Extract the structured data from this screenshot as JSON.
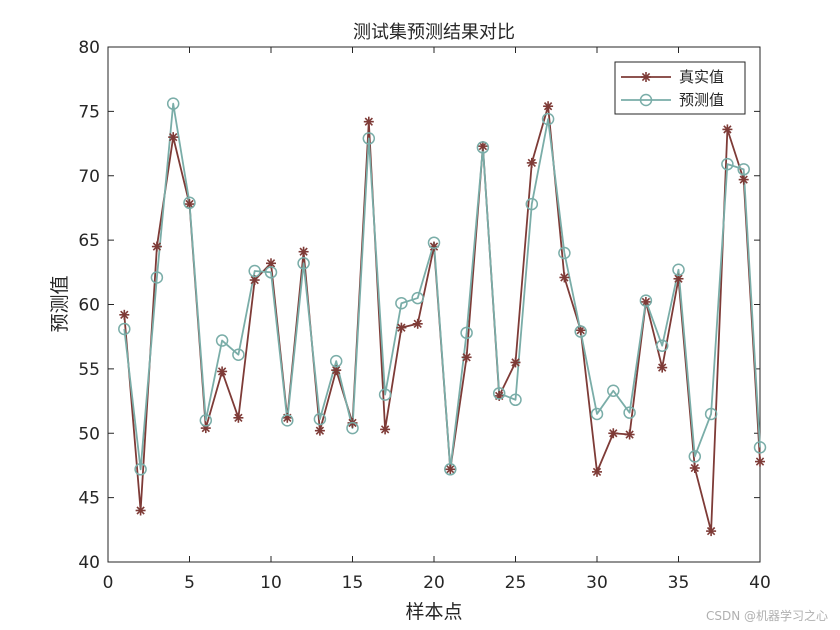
{
  "watermark": "CSDN @机器学习之心",
  "chart_data": {
    "type": "line",
    "title": "测试集预测结果对比",
    "xlabel": "样本点",
    "ylabel": "预测值",
    "xlim": [
      0,
      40
    ],
    "ylim": [
      40,
      80
    ],
    "xticks": [
      0,
      5,
      10,
      15,
      20,
      25,
      30,
      35,
      40
    ],
    "yticks": [
      40,
      45,
      50,
      55,
      60,
      65,
      70,
      75,
      80
    ],
    "grid": false,
    "legend_position": "top-right",
    "x": [
      1,
      2,
      3,
      4,
      5,
      6,
      7,
      8,
      9,
      10,
      11,
      12,
      13,
      14,
      15,
      16,
      17,
      18,
      19,
      20,
      21,
      22,
      23,
      24,
      25,
      26,
      27,
      28,
      29,
      30,
      31,
      32,
      33,
      34,
      35,
      36,
      37,
      38,
      39,
      40
    ],
    "series": [
      {
        "name": "真实值",
        "color": "#7e3b37",
        "marker": "asterisk",
        "values": [
          59.2,
          44.0,
          64.5,
          73.0,
          67.8,
          50.4,
          54.8,
          51.2,
          61.9,
          63.2,
          51.2,
          64.1,
          50.2,
          54.9,
          50.8,
          74.2,
          50.3,
          58.2,
          58.5,
          64.5,
          47.2,
          55.9,
          72.3,
          52.9,
          55.5,
          71.0,
          75.4,
          62.1,
          58.0,
          47.0,
          50.0,
          49.9,
          60.2,
          55.1,
          62.0,
          47.3,
          42.4,
          73.6,
          69.7,
          47.8
        ]
      },
      {
        "name": "预测值",
        "color": "#7aada8",
        "marker": "circle",
        "values": [
          58.1,
          47.2,
          62.1,
          75.6,
          67.9,
          51.0,
          57.2,
          56.1,
          62.6,
          62.5,
          51.0,
          63.2,
          51.1,
          55.6,
          50.4,
          72.9,
          53.0,
          60.1,
          60.5,
          64.8,
          47.2,
          57.8,
          72.2,
          53.1,
          52.6,
          67.8,
          74.4,
          64.0,
          57.9,
          51.5,
          53.3,
          51.6,
          60.3,
          56.8,
          62.7,
          48.2,
          51.5,
          70.9,
          70.5,
          48.9
        ]
      }
    ]
  }
}
